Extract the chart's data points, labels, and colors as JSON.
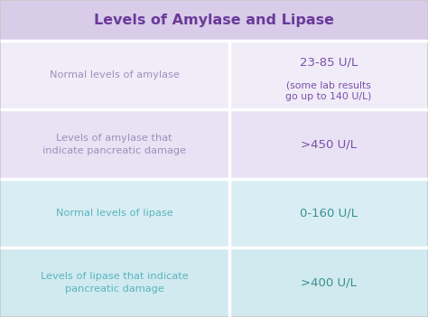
{
  "title": "Levels of Amylase and Lipase",
  "title_bg": "#d8cce8",
  "title_color": "#6b3a9a",
  "title_fontsize": 11.5,
  "rows": [
    {
      "label": "Normal levels of amylase",
      "value_line1": "23-85 U/L",
      "value_line2": "(some lab results\ngo up to 140 U/L)",
      "label_color": "#a090bc",
      "value_color": "#7b50a8",
      "bg_color": "#f0ecf8"
    },
    {
      "label": "Levels of amylase that\nindicate pancreatic damage",
      "value_line1": ">450 U/L",
      "value_line2": "",
      "label_color": "#a090bc",
      "value_color": "#7b50a8",
      "bg_color": "#e8e2f4"
    },
    {
      "label": "Normal levels of lipase",
      "value_line1": "0-160 U/L",
      "value_line2": "",
      "label_color": "#5ab5bc",
      "value_color": "#3a9090",
      "bg_color": "#d8eef4"
    },
    {
      "label": "Levels of lipase that indicate\npancreatic damage",
      "value_line1": ">400 U/L",
      "value_line2": "",
      "label_color": "#5ab5bc",
      "value_color": "#3a9090",
      "bg_color": "#d0eaf0"
    }
  ],
  "col_split": 0.535,
  "fig_bg": "#ffffff",
  "divider_color": "#ffffff",
  "divider_lw": 2.5
}
